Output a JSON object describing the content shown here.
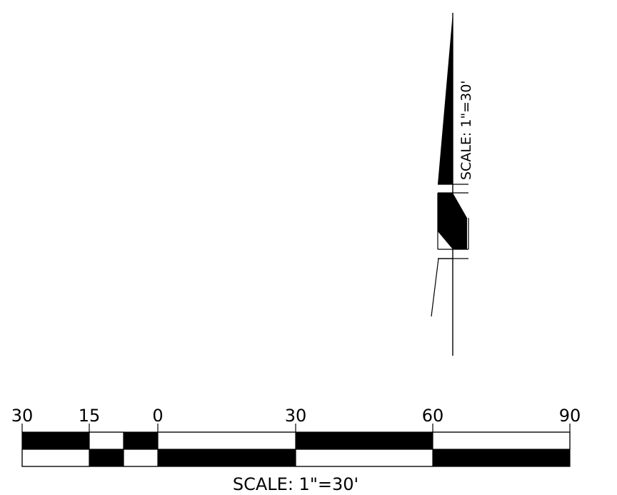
{
  "north_arrow": {
    "scale_label": "SCALE:  1\"=30'"
  },
  "scale_bar": {
    "tick_labels": [
      "30",
      "15",
      "0",
      "30",
      "60",
      "90"
    ],
    "scale_label": "SCALE:  1\"=30'",
    "colors": {
      "ink": "#000000",
      "paper": "#ffffff"
    }
  }
}
